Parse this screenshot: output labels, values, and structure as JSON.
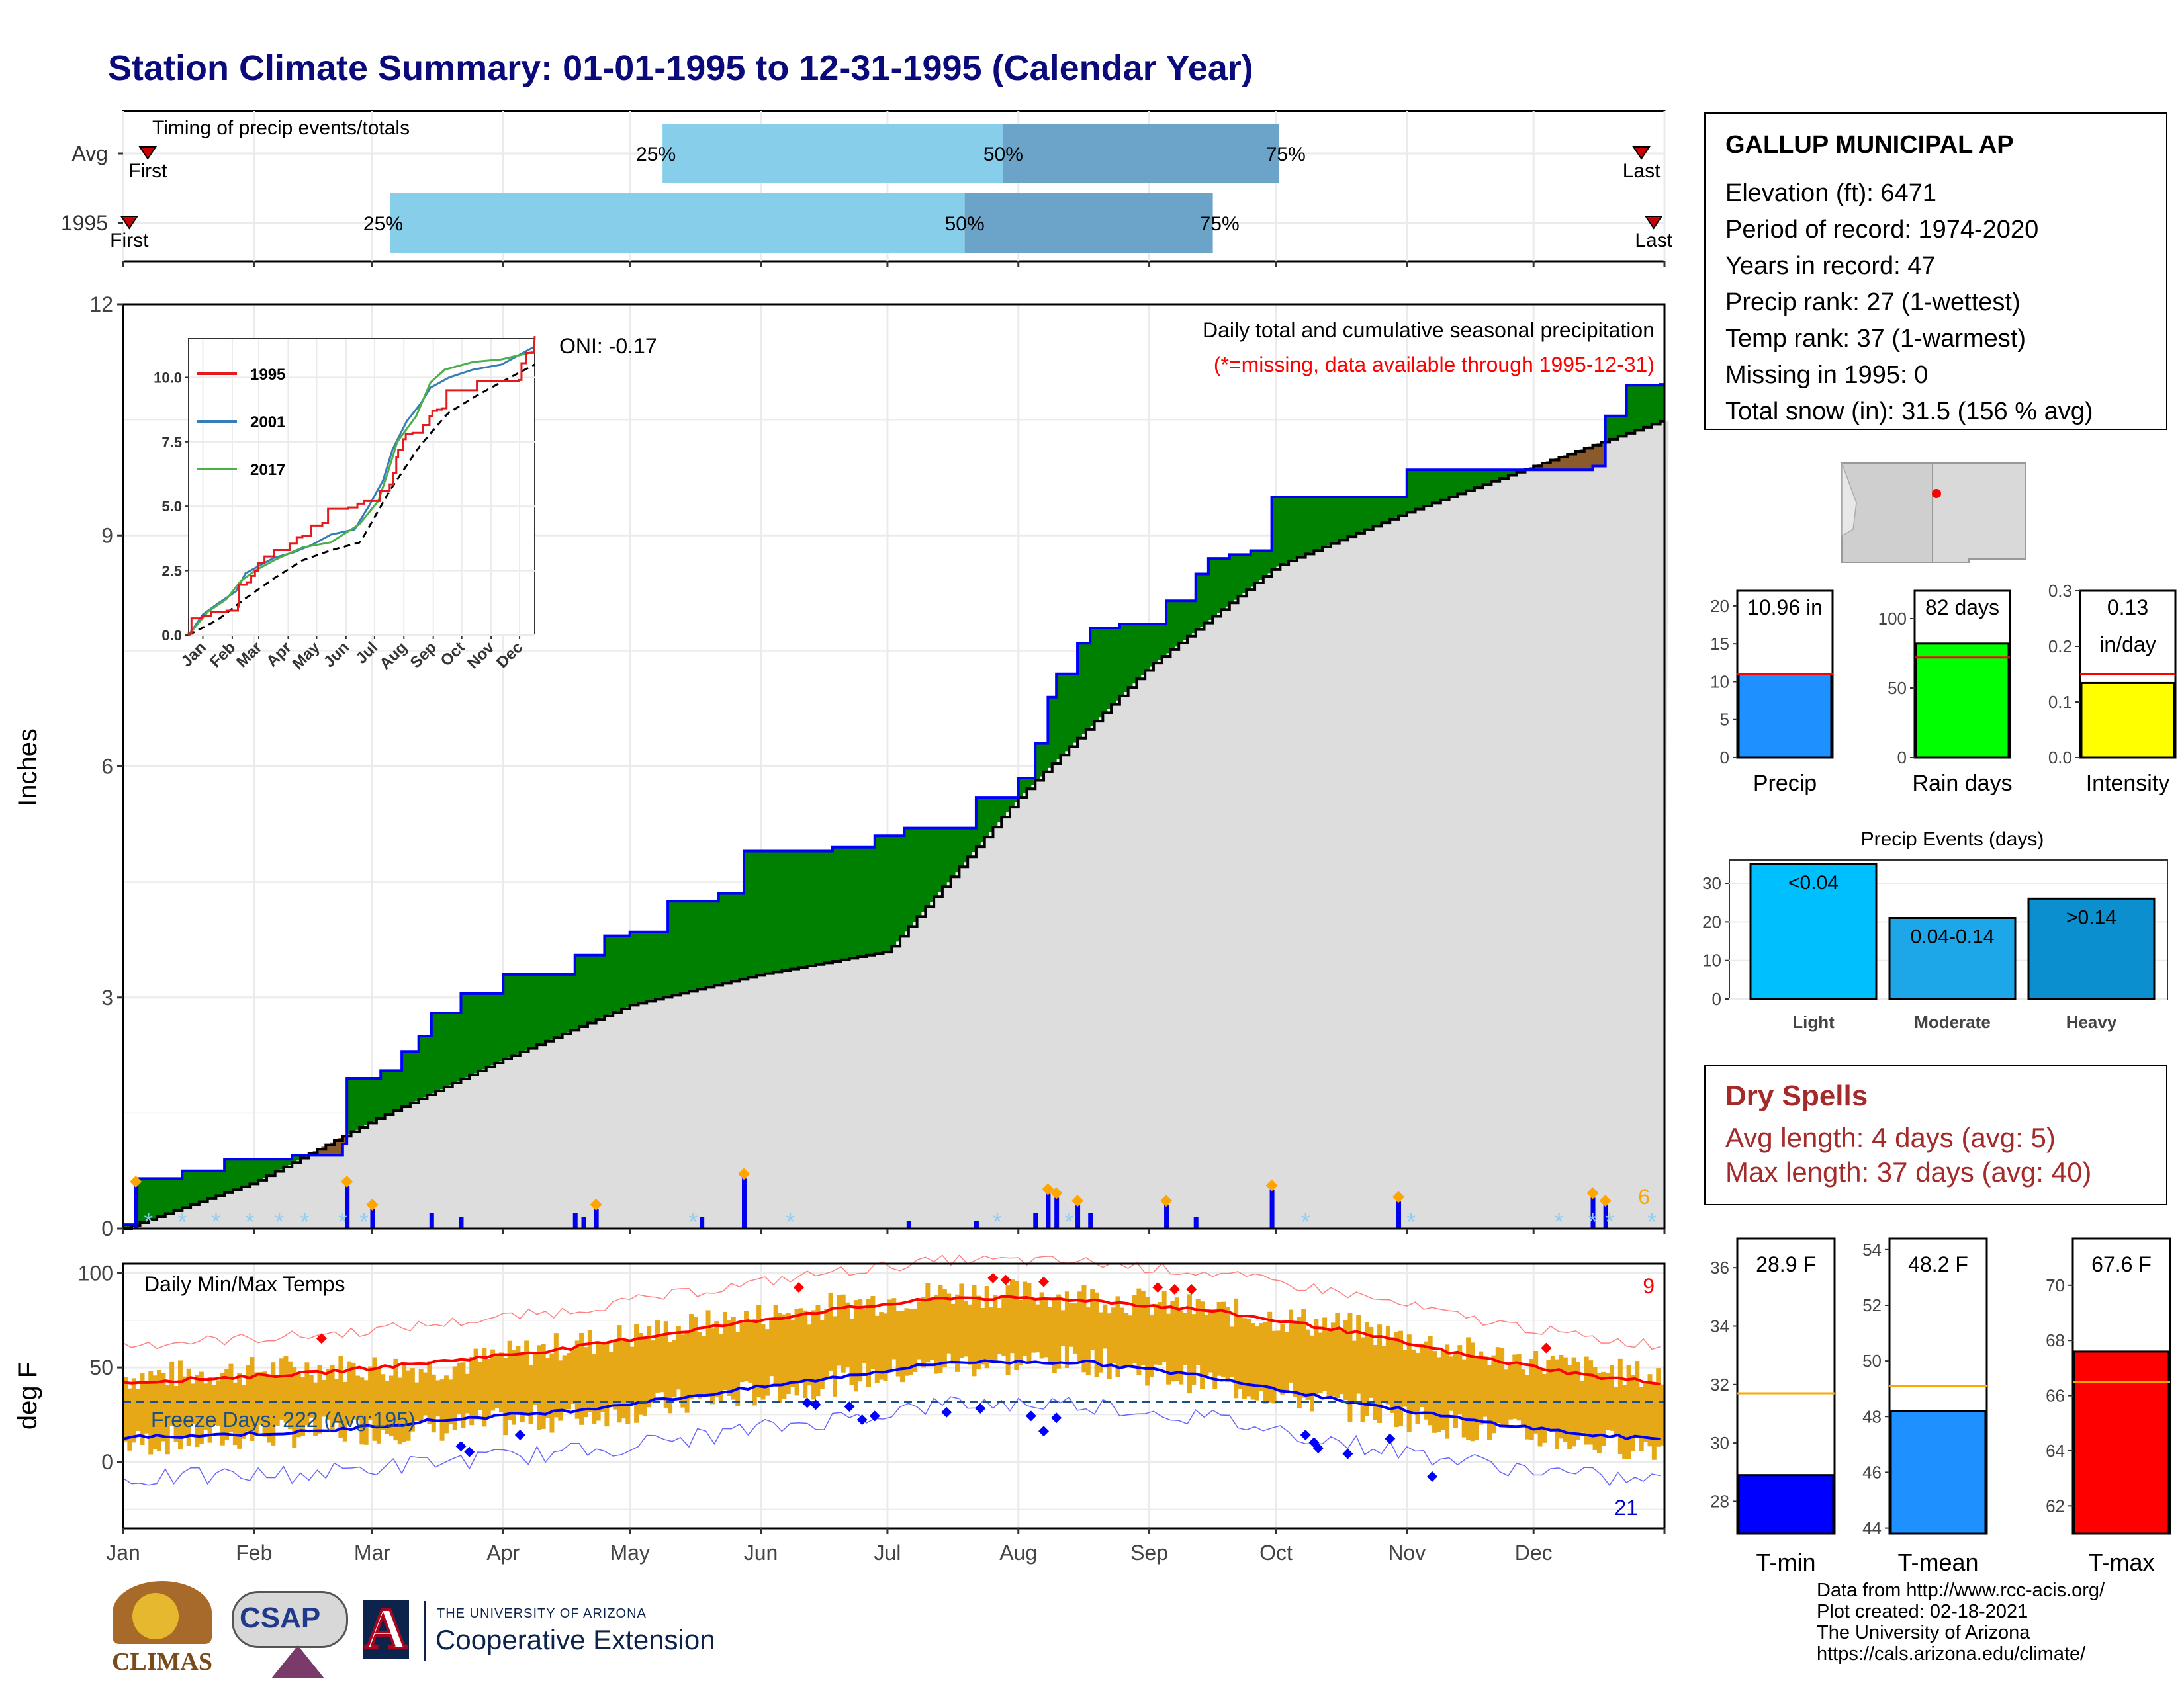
{
  "title": "Station Climate Summary: 01-01-1995 to 12-31-1995 (Calendar Year)",
  "colors": {
    "title": "#0a0a7a",
    "accent_blue": "#0000ff",
    "fill_green": "#008000",
    "fill_brown": "#8b5a2b",
    "cum_gray": "#dddddd",
    "bar_blue": "#0000ee",
    "light_blue": "#87ceeb",
    "mid_blue": "#6ba3c9",
    "orange": "#ffa500",
    "temp_bar": "#e6a817",
    "precip_blue": "#1e90ff",
    "rain_green": "#00ff00",
    "intensity_yellow": "#ffff00",
    "events_light": "#00bfff",
    "events_moderate": "#1ea7e8",
    "events_heavy": "#0b8fcf",
    "red": "#ff0000",
    "dry_red": "#a52a2a"
  },
  "timing": {
    "label": "Timing of precip events/totals",
    "rows": [
      {
        "name": "Avg",
        "first_label": "First",
        "last_label": "Last",
        "first_frac": 0.016,
        "last_frac": 0.985,
        "p25": 0.35,
        "p50": 0.571,
        "p75": 0.75
      },
      {
        "name": "1995",
        "first_label": "First",
        "last_label": "Last",
        "first_frac": 0.004,
        "last_frac": 0.993,
        "p25": 0.173,
        "p50": 0.546,
        "p75": 0.707
      }
    ],
    "pct_labels": [
      "25%",
      "50%",
      "75%"
    ]
  },
  "main_panel": {
    "ylabel": "Inches",
    "yticks": [
      "0",
      "3",
      "6",
      "9",
      "12"
    ],
    "oni": "ONI: -0.17",
    "caption1": "Daily total and cumulative seasonal precipitation",
    "caption2": "(*=missing, data available through 1995-12-31)",
    "corner_count": "6",
    "inset": {
      "yticks": [
        "0.0",
        "2.5",
        "5.0",
        "7.5",
        "10.0"
      ],
      "months": [
        "Jan",
        "Feb",
        "Mar",
        "Apr",
        "May",
        "Jun",
        "Jul",
        "Aug",
        "Sep",
        "Oct",
        "Nov",
        "Dec"
      ],
      "legend": [
        {
          "name": "1995",
          "color": "#e41a1c"
        },
        {
          "name": "2001",
          "color": "#377eb8"
        },
        {
          "name": "2017",
          "color": "#4daf4a"
        }
      ]
    }
  },
  "temp_panel": {
    "ylabel": "deg F",
    "yticks": [
      "0",
      "50",
      "100"
    ],
    "label": "Daily Min/Max Temps",
    "freeze_label": "Freeze Days: 222 (Avg:195)",
    "max_count": "9",
    "min_count": "21"
  },
  "months": [
    "Jan",
    "Feb",
    "Mar",
    "Apr",
    "May",
    "Jun",
    "Jul",
    "Aug",
    "Sep",
    "Oct",
    "Nov",
    "Dec"
  ],
  "station": {
    "name": "GALLUP MUNICIPAL AP",
    "lines": [
      "Elevation (ft): 6471",
      "Period of record: 1974-2020",
      "Years in record: 47",
      "Precip rank: 27 (1-wettest)",
      "Temp rank: 37 (1-warmest)",
      "Missing in 1995: 0",
      "Total snow (in): 31.5 (156 % avg)"
    ]
  },
  "mini_bars": [
    {
      "label": "Precip",
      "value_text": "10.96 in",
      "value": 10.96,
      "avg": 11.0,
      "max": 20,
      "ticks": [
        "0",
        "5",
        "10",
        "15",
        "20"
      ],
      "tick_vals": [
        0,
        5,
        10,
        15,
        20
      ],
      "ymax": 22
    },
    {
      "label": "Rain days",
      "value_text": "82 days",
      "value": 82,
      "avg": 72,
      "max": 100,
      "ticks": [
        "0",
        "50",
        "100"
      ],
      "tick_vals": [
        0,
        50,
        100
      ],
      "ymax": 120
    },
    {
      "label": "Intensity",
      "value_text": "0.13",
      "value_text2": "in/day",
      "value": 0.134,
      "avg": 0.15,
      "max": 0.3,
      "ticks": [
        "0.0",
        "0.1",
        "0.2",
        "0.3"
      ],
      "tick_vals": [
        0,
        0.1,
        0.2,
        0.3
      ],
      "ymax": 0.3
    }
  ],
  "events": {
    "title": "Precip Events (days)",
    "ticks": [
      "0",
      "10",
      "20",
      "30"
    ],
    "tick_vals": [
      0,
      10,
      20,
      30
    ],
    "ymax": 36,
    "bars": [
      {
        "name": "Light",
        "label": "<0.04",
        "value": 35
      },
      {
        "name": "Moderate",
        "label": "0.04-0.14",
        "value": 21
      },
      {
        "name": "Heavy",
        "label": ">0.14",
        "value": 26
      }
    ]
  },
  "dry_spells": {
    "title": "Dry Spells",
    "avg": "Avg length: 4 days (avg: 5)",
    "max": "Max length: 37 days (avg: 40)"
  },
  "temp_bars": [
    {
      "label": "T-min",
      "value_text": "28.9 F",
      "value": 28.9,
      "avg": 31.7,
      "ymin": 26.9,
      "ymax": 37,
      "ticks": [
        "28",
        "30",
        "32",
        "34",
        "36"
      ],
      "tick_vals": [
        28,
        30,
        32,
        34,
        36
      ]
    },
    {
      "label": "T-mean",
      "value_text": "48.2 F",
      "value": 48.2,
      "avg": 49.1,
      "ymin": 43.8,
      "ymax": 54.4,
      "ticks": [
        "44",
        "46",
        "48",
        "50",
        "52",
        "54"
      ],
      "tick_vals": [
        44,
        46,
        48,
        50,
        52,
        54
      ]
    },
    {
      "label": "T-max",
      "value_text": "67.6 F",
      "value": 67.6,
      "avg": 66.5,
      "ymin": 61,
      "ymax": 71.7,
      "ticks": [
        "62",
        "64",
        "66",
        "68",
        "70"
      ],
      "tick_vals": [
        62,
        64,
        66,
        68,
        70
      ]
    }
  ],
  "footer": {
    "climas": "CLIMAS",
    "csap": "CSAP",
    "ua_small": "THE UNIVERSITY OF ARIZONA",
    "ua_big": "Cooperative Extension",
    "credits": [
      "Data from http://www.rcc-acis.org/",
      "Plot created: 02-18-2021",
      "The University of Arizona",
      "https://cals.arizona.edu/climate/"
    ]
  },
  "chart_data": [
    {
      "type": "area",
      "title": "Daily total and cumulative seasonal precipitation",
      "ylabel": "Inches",
      "ylim": [
        0,
        12
      ],
      "x": [
        "Jan 1",
        "Jan 4",
        "Jan 15",
        "Jan 25",
        "Feb 10",
        "Feb 22",
        "Feb 23",
        "Mar 3",
        "Mar 8",
        "Mar 12",
        "Mar 15",
        "Mar 22",
        "Apr 1",
        "Apr 18",
        "Apr 25",
        "May 1",
        "May 10",
        "May 22",
        "May 28",
        "Jun 18",
        "Jun 28",
        "Jul 5",
        "Jul 22",
        "Aug 1",
        "Aug 5",
        "Aug 8",
        "Aug 10",
        "Aug 15",
        "Aug 18",
        "Aug 25",
        "Sep 5",
        "Sep 12",
        "Sep 15",
        "Sep 20",
        "Sep 25",
        "Sep 30",
        "Oct 10",
        "Oct 30",
        "Nov 1",
        "Nov 20",
        "Dec 15",
        "Dec 18",
        "Dec 23",
        "Dec 31"
      ],
      "series": [
        {
          "name": "1995",
          "values": [
            0.05,
            0.65,
            0.75,
            0.9,
            0.95,
            1.1,
            1.95,
            2.05,
            2.3,
            2.5,
            2.8,
            3.05,
            3.3,
            3.55,
            3.8,
            3.85,
            4.25,
            4.35,
            4.9,
            4.95,
            5.1,
            5.2,
            5.6,
            5.85,
            6.3,
            6.9,
            7.2,
            7.6,
            7.8,
            7.85,
            8.15,
            8.5,
            8.7,
            8.75,
            8.8,
            9.5,
            9.5,
            9.5,
            9.85,
            9.85,
            9.9,
            10.55,
            10.95,
            10.96
          ]
        }
      ],
      "average_cumulative": {
        "x": [
          "Jan 1",
          "Feb 1",
          "Mar 1",
          "Apr 1",
          "May 1",
          "Jun 1",
          "Jul 1",
          "Aug 1",
          "Sep 1",
          "Oct 1",
          "Nov 1",
          "Dec 1",
          "Dec 31"
        ],
        "values": [
          0.0,
          0.6,
          1.4,
          2.2,
          2.9,
          3.3,
          3.6,
          5.6,
          7.3,
          8.6,
          9.3,
          9.9,
          10.5
        ]
      },
      "daily_bars": [
        {
          "x": "Jan 4",
          "value": 0.55
        },
        {
          "x": "Feb 23",
          "value": 0.55
        },
        {
          "x": "Mar 1",
          "value": 0.25
        },
        {
          "x": "Mar 15",
          "value": 0.2
        },
        {
          "x": "Mar 22",
          "value": 0.15
        },
        {
          "x": "Apr 18",
          "value": 0.2
        },
        {
          "x": "Apr 20",
          "value": 0.15
        },
        {
          "x": "Apr 23",
          "value": 0.25
        },
        {
          "x": "May 18",
          "value": 0.15
        },
        {
          "x": "May 28",
          "value": 0.65
        },
        {
          "x": "Jul 6",
          "value": 0.1
        },
        {
          "x": "Jul 22",
          "value": 0.1
        },
        {
          "x": "Aug 5",
          "value": 0.2
        },
        {
          "x": "Aug 8",
          "value": 0.45
        },
        {
          "x": "Aug 10",
          "value": 0.4
        },
        {
          "x": "Aug 15",
          "value": 0.3
        },
        {
          "x": "Aug 18",
          "value": 0.2
        },
        {
          "x": "Sep 5",
          "value": 0.3
        },
        {
          "x": "Sep 12",
          "value": 0.15
        },
        {
          "x": "Sep 30",
          "value": 0.5
        },
        {
          "x": "Oct 30",
          "value": 0.35
        },
        {
          "x": "Dec 15",
          "value": 0.4
        },
        {
          "x": "Dec 18",
          "value": 0.3
        }
      ]
    },
    {
      "type": "line",
      "title": "Daily Min/Max Temps",
      "ylabel": "deg F",
      "ylim": [
        -35,
        105
      ],
      "x": [
        "Jan",
        "Feb",
        "Mar",
        "Apr",
        "May",
        "Jun",
        "Jul",
        "Aug",
        "Sep",
        "Oct",
        "Nov",
        "Dec",
        "Dec 31"
      ],
      "series": [
        {
          "name": "avg max",
          "values": [
            42,
            47,
            53,
            60,
            70,
            80,
            87,
            86,
            80,
            70,
            56,
            45,
            42
          ]
        },
        {
          "name": "avg min",
          "values": [
            13,
            16,
            22,
            27,
            35,
            44,
            53,
            53,
            45,
            33,
            22,
            14,
            12
          ]
        },
        {
          "name": "daily max",
          "values": [
            45,
            50,
            50,
            62,
            72,
            82,
            90,
            88,
            80,
            72,
            58,
            48,
            45
          ]
        },
        {
          "name": "daily min",
          "values": [
            10,
            16,
            18,
            24,
            32,
            42,
            52,
            54,
            42,
            30,
            18,
            10,
            8
          ]
        }
      ],
      "freeze_threshold": 32
    }
  ]
}
